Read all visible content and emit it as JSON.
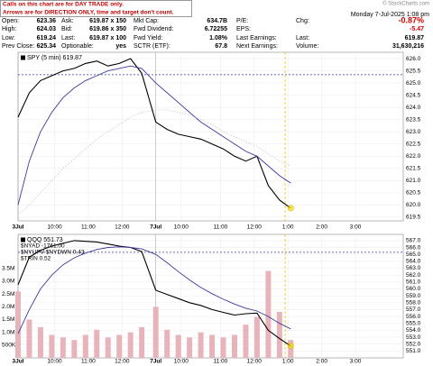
{
  "note": [
    "Calls on this chart are for DAY TRADE only.",
    "Arrows are for DIRECTION ONLY, time and target don't count."
  ],
  "watermark": "© StockCharts.com",
  "quote": {
    "rows": [
      [
        [
          "Open:",
          "623.36"
        ],
        [
          "Ask:",
          "619.87 x 150"
        ],
        [
          "Mkt Cap:",
          "634.7B"
        ],
        [
          "P/E:"
        ]
      ],
      [
        [
          "High:",
          "624.03"
        ],
        [
          "Bid:",
          "619.86 x 350"
        ],
        [
          "Fwd Dividend:",
          "6.72255"
        ],
        [
          "EPS:"
        ]
      ],
      [
        [
          "Low:",
          "619.24"
        ],
        [
          "Last:",
          "619.87 x 100"
        ],
        [
          "Fwd Yield:",
          "1.08%"
        ],
        [
          "Last Earnings:"
        ]
      ],
      [
        [
          "Prev Close:",
          "625.34"
        ],
        [
          "Optionable:",
          "yes"
        ],
        [
          "SCTR (ETF):",
          "67.8"
        ],
        [
          "Next Earnings:"
        ]
      ]
    ]
  },
  "right": {
    "date": "Monday  7-Jul-2025  1:08 pm",
    "rows": [
      [
        "Chg:",
        "-0.87%"
      ],
      [
        "",
        "-5.47"
      ],
      [
        "Last:",
        "619.87"
      ],
      [
        "Volume:",
        "31,630,216"
      ]
    ]
  },
  "chart_data": [
    {
      "type": "line",
      "x": [
        0,
        4,
        8,
        12,
        16,
        20,
        24,
        28,
        32,
        36,
        40,
        44,
        49,
        53,
        57,
        61,
        65,
        69,
        73,
        77,
        81,
        85,
        89,
        93,
        97
      ],
      "xlim": [
        0,
        137
      ],
      "xticks": [
        {
          "value": 0,
          "label": "3Jul"
        },
        {
          "value": 13,
          "label": "10:00"
        },
        {
          "value": 25,
          "label": "11:00"
        },
        {
          "value": 37,
          "label": "12:00"
        },
        {
          "value": 49,
          "label": "7Jul"
        },
        {
          "value": 58,
          "label": "10:00"
        },
        {
          "value": 72,
          "label": "11:00"
        },
        {
          "value": 84,
          "label": "12:00"
        },
        {
          "value": 96,
          "label": "1:00"
        },
        {
          "value": 108,
          "label": "2:00"
        },
        {
          "value": 120,
          "label": "3:00"
        }
      ],
      "ylim": [
        619.35,
        626.26
      ],
      "yticks": [
        {
          "value": 619.5,
          "label": "619.5"
        },
        {
          "value": 620,
          "label": "620.0"
        },
        {
          "value": 620.5,
          "label": "620.5"
        },
        {
          "value": 621,
          "label": "621.0"
        },
        {
          "value": 621.5,
          "label": "621.5"
        },
        {
          "value": 622,
          "label": "622.0"
        },
        {
          "value": 622.5,
          "label": "622.5"
        },
        {
          "value": 623,
          "label": "623.0"
        },
        {
          "value": 623.5,
          "label": "623.5"
        },
        {
          "value": 624,
          "label": "624.0"
        },
        {
          "value": 624.5,
          "label": "624.5"
        },
        {
          "value": 625,
          "label": "625.0"
        },
        {
          "value": 625.5,
          "label": "625.5"
        },
        {
          "value": 626,
          "label": "626.0"
        }
      ],
      "grid": true,
      "hline": 625.34,
      "vline": 95,
      "series": [
        {
          "name": "SPY (5 min) 619.87",
          "color": "#000000",
          "values": [
            623.6,
            624.6,
            625.1,
            625.3,
            625.5,
            625.6,
            625.8,
            625.9,
            625.7,
            625.8,
            626.0,
            625.4,
            623.4,
            623.1,
            622.9,
            622.8,
            622.7,
            622.5,
            622.3,
            622.0,
            621.8,
            622.0,
            620.8,
            620.2,
            619.87
          ]
        },
        {
          "color": "#3a3a9a",
          "values": [
            620.0,
            621.8,
            623.0,
            623.8,
            624.4,
            624.8,
            625.1,
            625.3,
            625.5,
            625.6,
            625.7,
            625.6,
            625.0,
            624.6,
            624.2,
            623.8,
            623.4,
            623.1,
            622.8,
            622.5,
            622.2,
            622.0,
            621.6,
            621.2,
            620.9
          ]
        },
        {
          "color": "#bbbbbb",
          "dash": true,
          "values": [
            619.6,
            620.0,
            620.5,
            621.0,
            621.5,
            621.9,
            622.3,
            622.7,
            623.0,
            623.3,
            623.6,
            623.8,
            623.9,
            623.9,
            623.8,
            623.7,
            623.5,
            623.3,
            623.0,
            622.8,
            622.6,
            622.4,
            622.1,
            621.8,
            621.6
          ]
        }
      ]
    },
    {
      "type": "line",
      "x": [
        0,
        4,
        8,
        12,
        16,
        20,
        24,
        28,
        32,
        36,
        40,
        44,
        49,
        53,
        57,
        61,
        65,
        69,
        73,
        77,
        81,
        85,
        89,
        93,
        97
      ],
      "xlim": [
        0,
        137
      ],
      "xticks": [
        {
          "value": 0,
          "label": "3Jul"
        },
        {
          "value": 13,
          "label": "10:00"
        },
        {
          "value": 25,
          "label": "11:00"
        },
        {
          "value": 37,
          "label": "12:00"
        },
        {
          "value": 49,
          "label": "7Jul"
        },
        {
          "value": 58,
          "label": "10:00"
        },
        {
          "value": 72,
          "label": "11:00"
        },
        {
          "value": 84,
          "label": "12:00"
        },
        {
          "value": 96,
          "label": "1:00"
        },
        {
          "value": 108,
          "label": "2:00"
        },
        {
          "value": 120,
          "label": "3:00"
        }
      ],
      "ylim": [
        550.0,
        567.9
      ],
      "yticks": [
        {
          "value": 551,
          "label": "551.0"
        },
        {
          "value": 552,
          "label": "552.0"
        },
        {
          "value": 553,
          "label": "553.0"
        },
        {
          "value": 554,
          "label": "554.0"
        },
        {
          "value": 555,
          "label": "555.0"
        },
        {
          "value": 556,
          "label": "556.0"
        },
        {
          "value": 557,
          "label": "557.0"
        },
        {
          "value": 558,
          "label": "558.0"
        },
        {
          "value": 559,
          "label": "559.0"
        },
        {
          "value": 560,
          "label": "560.0"
        },
        {
          "value": 561,
          "label": "561.0"
        },
        {
          "value": 562,
          "label": "562.0"
        },
        {
          "value": 563,
          "label": "563.0"
        },
        {
          "value": 564,
          "label": "564.0"
        },
        {
          "value": 565,
          "label": "565.0"
        },
        {
          "value": 566,
          "label": "566.0"
        },
        {
          "value": 567,
          "label": "567.0"
        }
      ],
      "y2lim": [
        0,
        4830000
      ],
      "y2ticks": [
        {
          "value": 500000,
          "label": "500K"
        },
        {
          "value": 1000000,
          "label": "1.0M"
        },
        {
          "value": 1500000,
          "label": "1.5M"
        },
        {
          "value": 2000000,
          "label": "2.0M"
        },
        {
          "value": 2500000,
          "label": "2.5M"
        },
        {
          "value": 3000000,
          "label": "3.0M"
        },
        {
          "value": 3500000,
          "label": "3.5M"
        }
      ],
      "grid": true,
      "hline": 565.3,
      "vline": 95,
      "legend_notes": [
        "$NYAD -1761.00",
        "$NYUPV-$NYDWN 0.43",
        "$TRIN 0.52"
      ],
      "series": [
        {
          "color": "#e8b4bc",
          "axis": "y2",
          "values": [
            2600000,
            1500000,
            1200000,
            900000,
            800000,
            700000,
            900000,
            1100000,
            800000,
            900000,
            1000000,
            1200000,
            2000000,
            1100000,
            900000,
            800000,
            1000000,
            900000,
            800000,
            900000,
            1300000,
            1600000,
            3400000,
            1800000,
            700000
          ]
        },
        {
          "name": "QQQ 551.73",
          "color": "#000000",
          "values": [
            560.6,
            564.6,
            565.6,
            566.2,
            566.6,
            567.0,
            566.9,
            566.8,
            566.5,
            566.2,
            566.0,
            565.4,
            559.8,
            559.2,
            558.6,
            558.0,
            557.6,
            557.0,
            556.6,
            556.2,
            556.4,
            556.5,
            554.0,
            552.8,
            551.73
          ]
        },
        {
          "color": "#3a3a9a",
          "values": [
            553.5,
            557.0,
            560.0,
            562.0,
            563.5,
            564.5,
            565.2,
            565.7,
            566.0,
            566.1,
            566.0,
            565.8,
            565.0,
            563.8,
            562.5,
            561.3,
            560.2,
            559.3,
            558.5,
            557.8,
            557.2,
            556.8,
            556.0,
            555.0,
            554.2
          ]
        }
      ]
    }
  ]
}
